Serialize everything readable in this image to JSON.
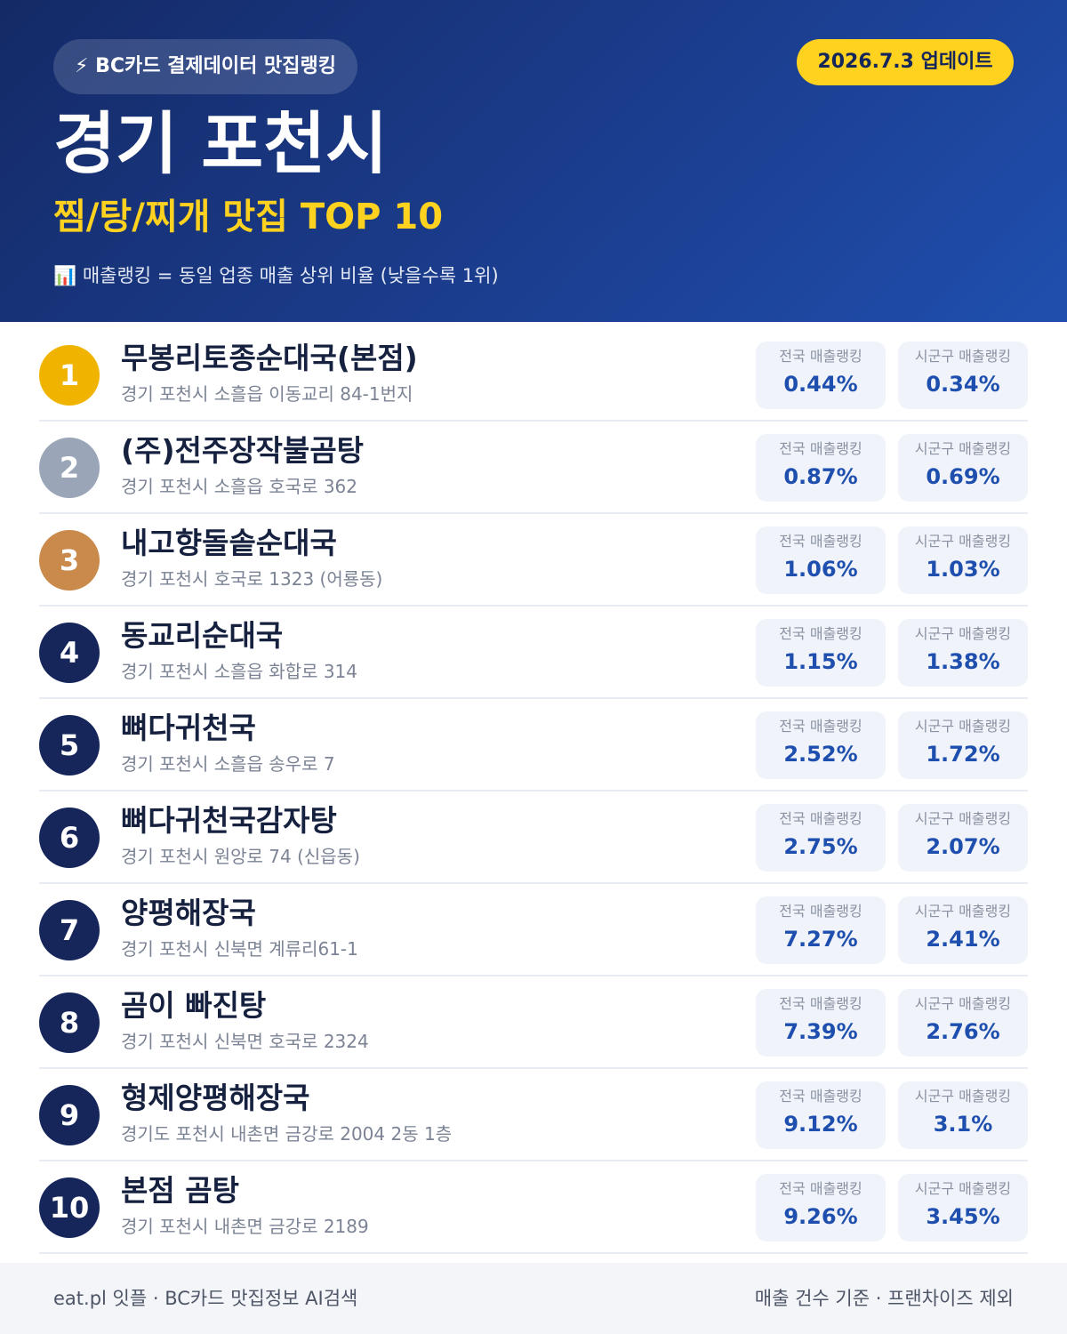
{
  "header": {
    "badge": "⚡ BC카드 결제데이터 맛집랭킹",
    "update": "2026.7.3 업데이트",
    "title": "경기 포천시",
    "subtitle": "찜/탕/찌개 맛집 TOP 10",
    "note": "📊 매출랭킹 = 동일 업종 매출 상위 비율 (낮을수록 1위)"
  },
  "labels": {
    "national": "전국 매출랭킹",
    "district": "시군구 매출랭킹"
  },
  "items": [
    {
      "rank": "1",
      "name": "무봉리토종순대국(본점)",
      "address": "경기 포천시 소흘읍 이동교리 84-1번지",
      "national": "0.44%",
      "district": "0.34%"
    },
    {
      "rank": "2",
      "name": "(주)전주장작불곰탕",
      "address": "경기 포천시 소흘읍 호국로 362",
      "national": "0.87%",
      "district": "0.69%"
    },
    {
      "rank": "3",
      "name": "내고향돌솥순대국",
      "address": "경기 포천시 호국로 1323 (어룡동)",
      "national": "1.06%",
      "district": "1.03%"
    },
    {
      "rank": "4",
      "name": "동교리순대국",
      "address": "경기 포천시 소흘읍 화합로 314",
      "national": "1.15%",
      "district": "1.38%"
    },
    {
      "rank": "5",
      "name": "뼈다귀천국",
      "address": "경기 포천시 소흘읍 송우로 7",
      "national": "2.52%",
      "district": "1.72%"
    },
    {
      "rank": "6",
      "name": "뼈다귀천국감자탕",
      "address": "경기 포천시 원앙로 74 (신읍동)",
      "national": "2.75%",
      "district": "2.07%"
    },
    {
      "rank": "7",
      "name": "양평해장국",
      "address": "경기 포천시 신북면 계류리61-1",
      "national": "7.27%",
      "district": "2.41%"
    },
    {
      "rank": "8",
      "name": "곰이 빠진탕",
      "address": "경기 포천시 신북면 호국로 2324",
      "national": "7.39%",
      "district": "2.76%"
    },
    {
      "rank": "9",
      "name": "형제양평해장국",
      "address": "경기도 포천시 내촌면 금강로 2004 2동 1층",
      "national": "9.12%",
      "district": "3.1%"
    },
    {
      "rank": "10",
      "name": "본점 곰탕",
      "address": "경기 포천시 내촌면 금강로 2189",
      "national": "9.26%",
      "district": "3.45%"
    }
  ],
  "footer": {
    "left": "eat.pl 잇플 · BC카드 맛집정보 AI검색",
    "right": "매출 건수 기준 · 프랜차이즈 제외"
  }
}
